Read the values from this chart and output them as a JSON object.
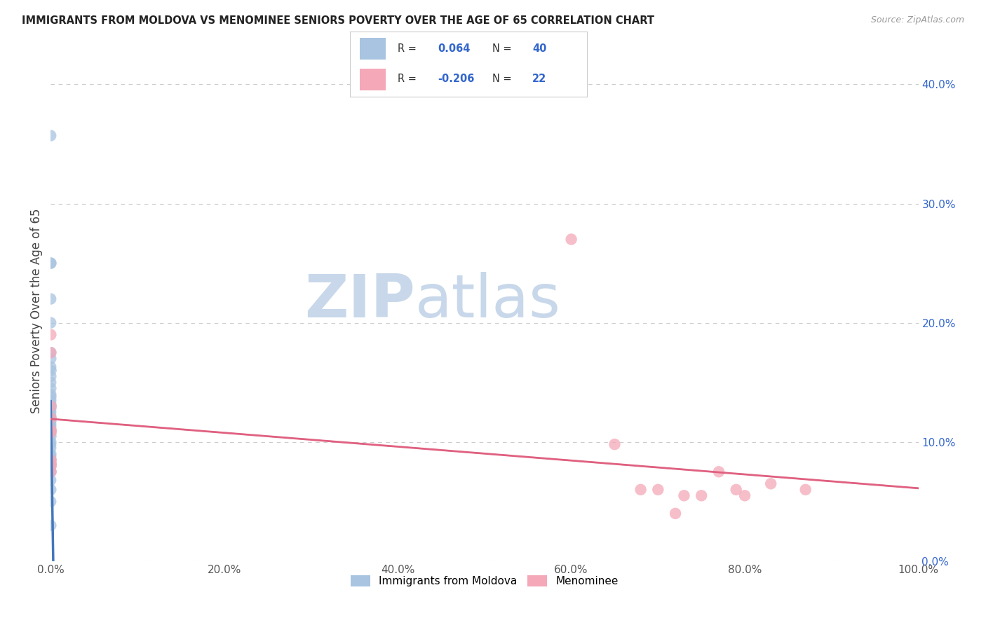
{
  "title": "IMMIGRANTS FROM MOLDOVA VS MENOMINEE SENIORS POVERTY OVER THE AGE OF 65 CORRELATION CHART",
  "source": "Source: ZipAtlas.com",
  "ylabel": "Seniors Poverty Over the Age of 65",
  "blue_R": 0.064,
  "blue_N": 40,
  "pink_R": -0.206,
  "pink_N": 22,
  "blue_color": "#a8c4e0",
  "pink_color": "#f4a8b8",
  "blue_line_color": "#4477bb",
  "pink_line_color": "#e06080",
  "blue_dashed_color": "#aaccee",
  "pink_dashed_color": "#ddaabb",
  "blue_scatter": [
    [
      0.0,
      0.357
    ],
    [
      0.0,
      0.25
    ],
    [
      0.0002,
      0.25
    ],
    [
      0.0,
      0.22
    ],
    [
      0.0,
      0.2
    ],
    [
      0.0,
      0.175
    ],
    [
      0.0001,
      0.17
    ],
    [
      0.0,
      0.163
    ],
    [
      0.0003,
      0.16
    ],
    [
      0.0001,
      0.155
    ],
    [
      0.0,
      0.15
    ],
    [
      0.0001,
      0.145
    ],
    [
      0.0,
      0.14
    ],
    [
      0.0002,
      0.138
    ],
    [
      0.0001,
      0.135
    ],
    [
      0.0,
      0.132
    ],
    [
      0.0003,
      0.13
    ],
    [
      0.0001,
      0.128
    ],
    [
      0.0,
      0.125
    ],
    [
      0.0,
      0.122
    ],
    [
      0.0001,
      0.12
    ],
    [
      0.0002,
      0.118
    ],
    [
      0.0,
      0.115
    ],
    [
      0.0,
      0.113
    ],
    [
      0.0001,
      0.11
    ],
    [
      0.0,
      0.108
    ],
    [
      0.0002,
      0.105
    ],
    [
      0.0001,
      0.1
    ],
    [
      0.0,
      0.098
    ],
    [
      0.0,
      0.095
    ],
    [
      0.0001,
      0.09
    ],
    [
      0.0,
      0.088
    ],
    [
      0.0001,
      0.085
    ],
    [
      0.0002,
      0.082
    ],
    [
      0.0,
      0.08
    ],
    [
      0.0001,
      0.075
    ],
    [
      0.0,
      0.068
    ],
    [
      0.0001,
      0.06
    ],
    [
      0.0,
      0.05
    ],
    [
      0.0001,
      0.03
    ]
  ],
  "pink_scatter": [
    [
      0.0001,
      0.19
    ],
    [
      0.0002,
      0.175
    ],
    [
      0.0003,
      0.13
    ],
    [
      0.0003,
      0.12
    ],
    [
      0.0004,
      0.11
    ],
    [
      0.0003,
      0.108
    ],
    [
      0.0004,
      0.085
    ],
    [
      0.0003,
      0.082
    ],
    [
      0.0005,
      0.08
    ],
    [
      0.0004,
      0.075
    ],
    [
      0.6,
      0.27
    ],
    [
      0.65,
      0.098
    ],
    [
      0.68,
      0.06
    ],
    [
      0.7,
      0.06
    ],
    [
      0.72,
      0.04
    ],
    [
      0.73,
      0.055
    ],
    [
      0.75,
      0.055
    ],
    [
      0.77,
      0.075
    ],
    [
      0.79,
      0.06
    ],
    [
      0.8,
      0.055
    ],
    [
      0.83,
      0.065
    ],
    [
      0.87,
      0.06
    ]
  ],
  "xlim": [
    0.0,
    1.0
  ],
  "ylim": [
    0.0,
    0.42
  ],
  "yticks": [
    0.0,
    0.1,
    0.2,
    0.3,
    0.4
  ],
  "xticks": [
    0.0,
    0.2,
    0.4,
    0.6,
    0.8,
    1.0
  ],
  "watermark_zip": "ZIP",
  "watermark_atlas": "atlas",
  "watermark_color": "#c8d8ea",
  "bg_color": "#ffffff",
  "grid_color": "#cccccc",
  "legend_blue_label": "Immigrants from Moldova",
  "legend_pink_label": "Menominee"
}
